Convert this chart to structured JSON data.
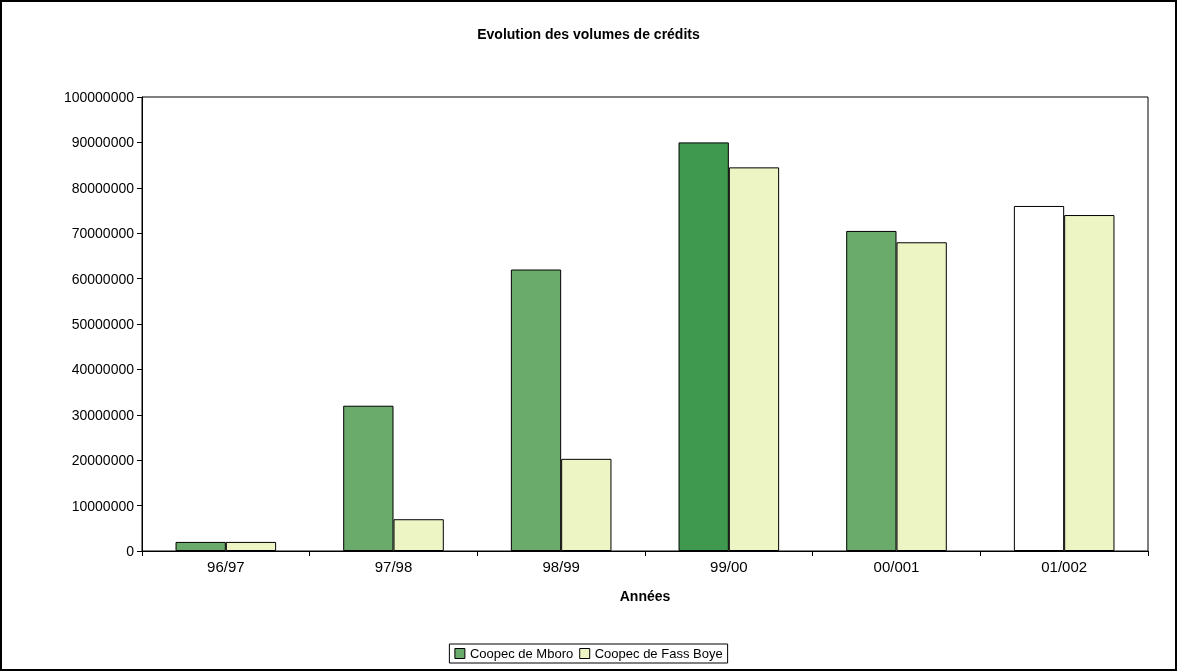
{
  "chart_data": {
    "type": "bar",
    "title": "Evolution des volumes de crédits",
    "xlabel": "Années",
    "categories": [
      "96/97",
      "97/98",
      "98/99",
      "99/00",
      "00/001",
      "01/002"
    ],
    "series": [
      {
        "name": "Coopec de Mboro",
        "color": "#6aaa6a",
        "colors": [
          "#6aaa6a",
          "#6aaa6a",
          "#6aaa6a",
          "#3f9a4f",
          "#6aaa6a",
          "#ffffff"
        ],
        "values": [
          2000000,
          32000000,
          62000000,
          90000000,
          70500000,
          76000000
        ]
      },
      {
        "name": "Coopec de Fass Boye",
        "color": "#eef5c4",
        "values": [
          2000000,
          7000000,
          20300000,
          84500000,
          68000000,
          74000000
        ]
      }
    ],
    "ylim": [
      0,
      100000000
    ],
    "yticks": [
      0,
      10000000,
      20000000,
      30000000,
      40000000,
      50000000,
      60000000,
      70000000,
      80000000,
      90000000,
      100000000
    ],
    "grid": false,
    "legend": "bottom"
  }
}
